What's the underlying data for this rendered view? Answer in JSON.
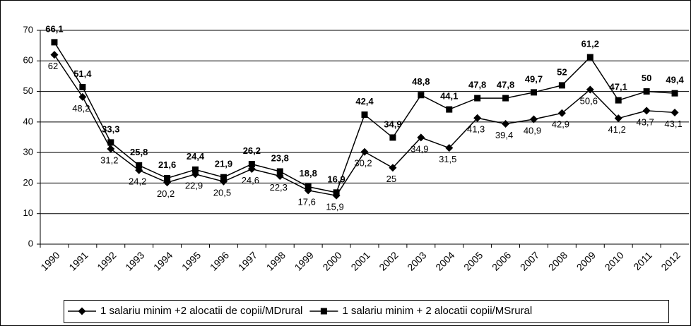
{
  "chart_data": {
    "type": "line",
    "categories": [
      "1990",
      "1991",
      "1992",
      "1993",
      "1994",
      "1995",
      "1996",
      "1997",
      "1998",
      "1999",
      "2000",
      "2001",
      "2002",
      "2003",
      "2004",
      "2005",
      "2006",
      "2007",
      "2008",
      "2009",
      "2010",
      "2011",
      "2012"
    ],
    "series": [
      {
        "name": "1 salariu minim +2 alocatii de copii/MDrural",
        "color": "#000000",
        "marker": "diamond",
        "values": [
          62,
          48.2,
          31.2,
          24.2,
          20.2,
          22.9,
          20.5,
          24.6,
          22.3,
          17.6,
          15.9,
          30.2,
          25,
          34.9,
          31.5,
          41.3,
          39.4,
          40.9,
          42.9,
          50.6,
          41.2,
          43.7,
          43.1
        ],
        "value_labels": [
          "62",
          "48,2",
          "31,2",
          "24,2",
          "20,2",
          "22,9",
          "20,5",
          "24,6",
          "22,3",
          "17,6",
          "15,9",
          "30,2",
          "25",
          "34,9",
          "31,5",
          "41,3",
          "39,4",
          "40,9",
          "42,9",
          "50,6",
          "41,2",
          "43,7",
          "43,1"
        ]
      },
      {
        "name": "1 salariu minim + 2 alocatii copii/MSrural",
        "color": "#000000",
        "marker": "square",
        "values": [
          66.1,
          51.4,
          33.3,
          25.8,
          21.6,
          24.4,
          21.9,
          26.2,
          23.8,
          18.8,
          16.9,
          42.4,
          34.9,
          48.8,
          44.1,
          47.8,
          47.8,
          49.7,
          52,
          61.2,
          47.1,
          50,
          49.4
        ],
        "value_labels": [
          "66,1",
          "51,4",
          "33,3",
          "25,8",
          "21,6",
          "24,4",
          "21,9",
          "26,2",
          "23,8",
          "18,8",
          "16,9",
          "42,4",
          "34,9",
          "48,8",
          "44,1",
          "47,8",
          "47,8",
          "49,7",
          "52",
          "61,2",
          "47,1",
          "50",
          "49,4"
        ]
      }
    ],
    "ylim": [
      0,
      70
    ],
    "yticks": [
      0,
      10,
      20,
      30,
      40,
      50,
      60,
      70
    ],
    "grid": true,
    "legend": "bottom"
  }
}
